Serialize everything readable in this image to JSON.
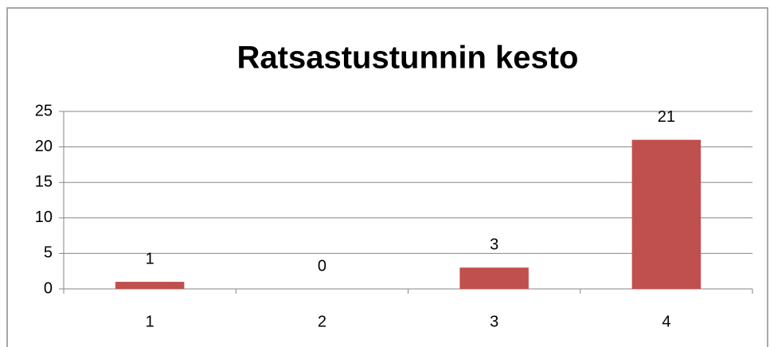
{
  "chart_data": {
    "type": "bar",
    "title": "Ratsastustunnin kesto",
    "categories": [
      "1",
      "2",
      "3",
      "4"
    ],
    "values": [
      1,
      0,
      3,
      21
    ],
    "color": "#c0504d",
    "ylim": [
      0,
      25
    ],
    "yticks": [
      0,
      5,
      10,
      15,
      20,
      25
    ],
    "grid": true,
    "data_labels": true
  }
}
